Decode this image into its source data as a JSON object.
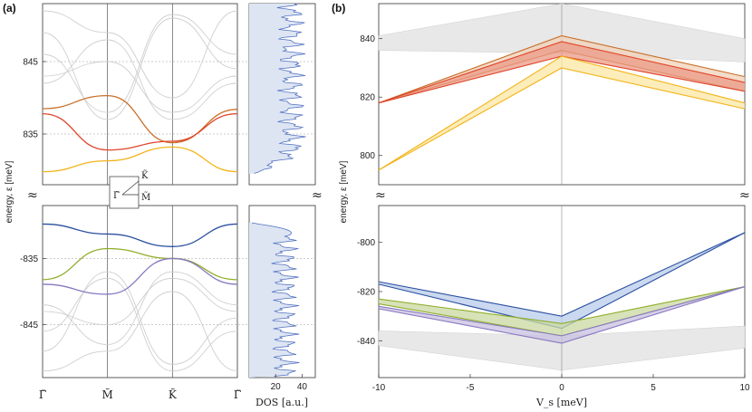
{
  "chart_data": [
    {
      "panel": "(a)",
      "type": "line",
      "title": "",
      "ylabel": "energy, ε [meV]",
      "xlabel": "",
      "x_ticks": [
        "Γ̃",
        "M̃",
        "K̃",
        "Γ̃"
      ],
      "y_ticks_upper": [
        "845",
        "835"
      ],
      "y_ticks_lower": [
        "-835",
        "-845"
      ],
      "ylim_upper": [
        828,
        853
      ],
      "ylim_lower": [
        -853,
        -827
      ],
      "inset_labels": [
        "Γ̃",
        "M̃",
        "K̃"
      ],
      "break_symbol": "≈",
      "series": [
        {
          "name": "upper band 1",
          "color": "#c8702a",
          "x": [
            0,
            1,
            2,
            3
          ],
          "values": [
            838.5,
            840.3,
            833.8,
            838.4
          ]
        },
        {
          "name": "upper band 2",
          "color": "#e0452a",
          "x": [
            0,
            1,
            2,
            3
          ],
          "values": [
            837.8,
            832.8,
            834.0,
            837.8
          ]
        },
        {
          "name": "upper band 3",
          "color": "#f2b418",
          "x": [
            0,
            1,
            2,
            3
          ],
          "values": [
            829.8,
            831.3,
            833.2,
            829.8
          ]
        },
        {
          "name": "lower band 1",
          "color": "#2a4fa0",
          "x": [
            0,
            1,
            2,
            3
          ],
          "values": [
            -829.8,
            -831.3,
            -833.2,
            -829.8
          ]
        },
        {
          "name": "lower band 2",
          "color": "#8fae2a",
          "x": [
            0,
            1,
            2,
            3
          ],
          "values": [
            -838.2,
            -833.5,
            -835.0,
            -838.2
          ]
        },
        {
          "name": "lower band 3",
          "color": "#8878c0",
          "x": [
            0,
            1,
            2,
            3
          ],
          "values": [
            -838.9,
            -840.4,
            -835.0,
            -838.9
          ]
        }
      ]
    },
    {
      "panel": "DOS",
      "type": "area",
      "xlabel": "DOS [a.u.]",
      "x_ticks": [
        "20",
        "40"
      ],
      "xlim": [
        0,
        50
      ],
      "color": "#5070c0",
      "fill": "#dde5f3",
      "upper_gap_edge": 829.5,
      "lower_gap_edge": -829.6,
      "lower_gap_peak": 45
    },
    {
      "panel": "(b)",
      "type": "line",
      "xlabel": "V_s [meV]",
      "ylabel": "energy, ε [meV]",
      "x_ticks": [
        "-10",
        "-5",
        "0",
        "5",
        "10"
      ],
      "y_ticks_upper": [
        "840",
        "820",
        "800"
      ],
      "y_ticks_lower": [
        "-800",
        "-820",
        "-840"
      ],
      "xlim": [
        -10,
        10
      ],
      "ylim_upper": [
        790,
        852
      ],
      "ylim_lower": [
        -855,
        -785
      ],
      "break_symbol": "≈",
      "bands": [
        {
          "name": "orange",
          "color": "#c8702a",
          "fill": "#f0d2b8",
          "x": [
            -10,
            0,
            10
          ],
          "top": [
            818,
            841,
            827
          ],
          "bottom": [
            818,
            836,
            822
          ]
        },
        {
          "name": "red",
          "color": "#e0452a",
          "fill": "#eb9a85",
          "x": [
            -10,
            0,
            10
          ],
          "top": [
            818,
            839,
            825
          ],
          "bottom": [
            818,
            834,
            822
          ]
        },
        {
          "name": "yellow",
          "color": "#f2b418",
          "fill": "#fbe7a4",
          "x": [
            -10,
            0,
            10
          ],
          "top": [
            795,
            834,
            818
          ],
          "bottom": [
            795,
            830,
            816
          ]
        },
        {
          "name": "blue",
          "color": "#2a4fa0",
          "fill": "#b8ccea",
          "x": [
            -10,
            0,
            10
          ],
          "top": [
            -816,
            -830,
            -796
          ],
          "bottom": [
            -817,
            -835,
            -796
          ]
        },
        {
          "name": "green",
          "color": "#8fae2a",
          "fill": "#c9d8a0",
          "x": [
            -10,
            0,
            10
          ],
          "top": [
            -823,
            -833,
            -818
          ],
          "bottom": [
            -825,
            -838,
            -818
          ]
        },
        {
          "name": "purple",
          "color": "#8878c0",
          "fill": "#c8c0e0",
          "x": [
            -10,
            0,
            10
          ],
          "top": [
            -826,
            -838,
            -818
          ],
          "bottom": [
            -827,
            -841,
            -818
          ]
        }
      ]
    }
  ]
}
